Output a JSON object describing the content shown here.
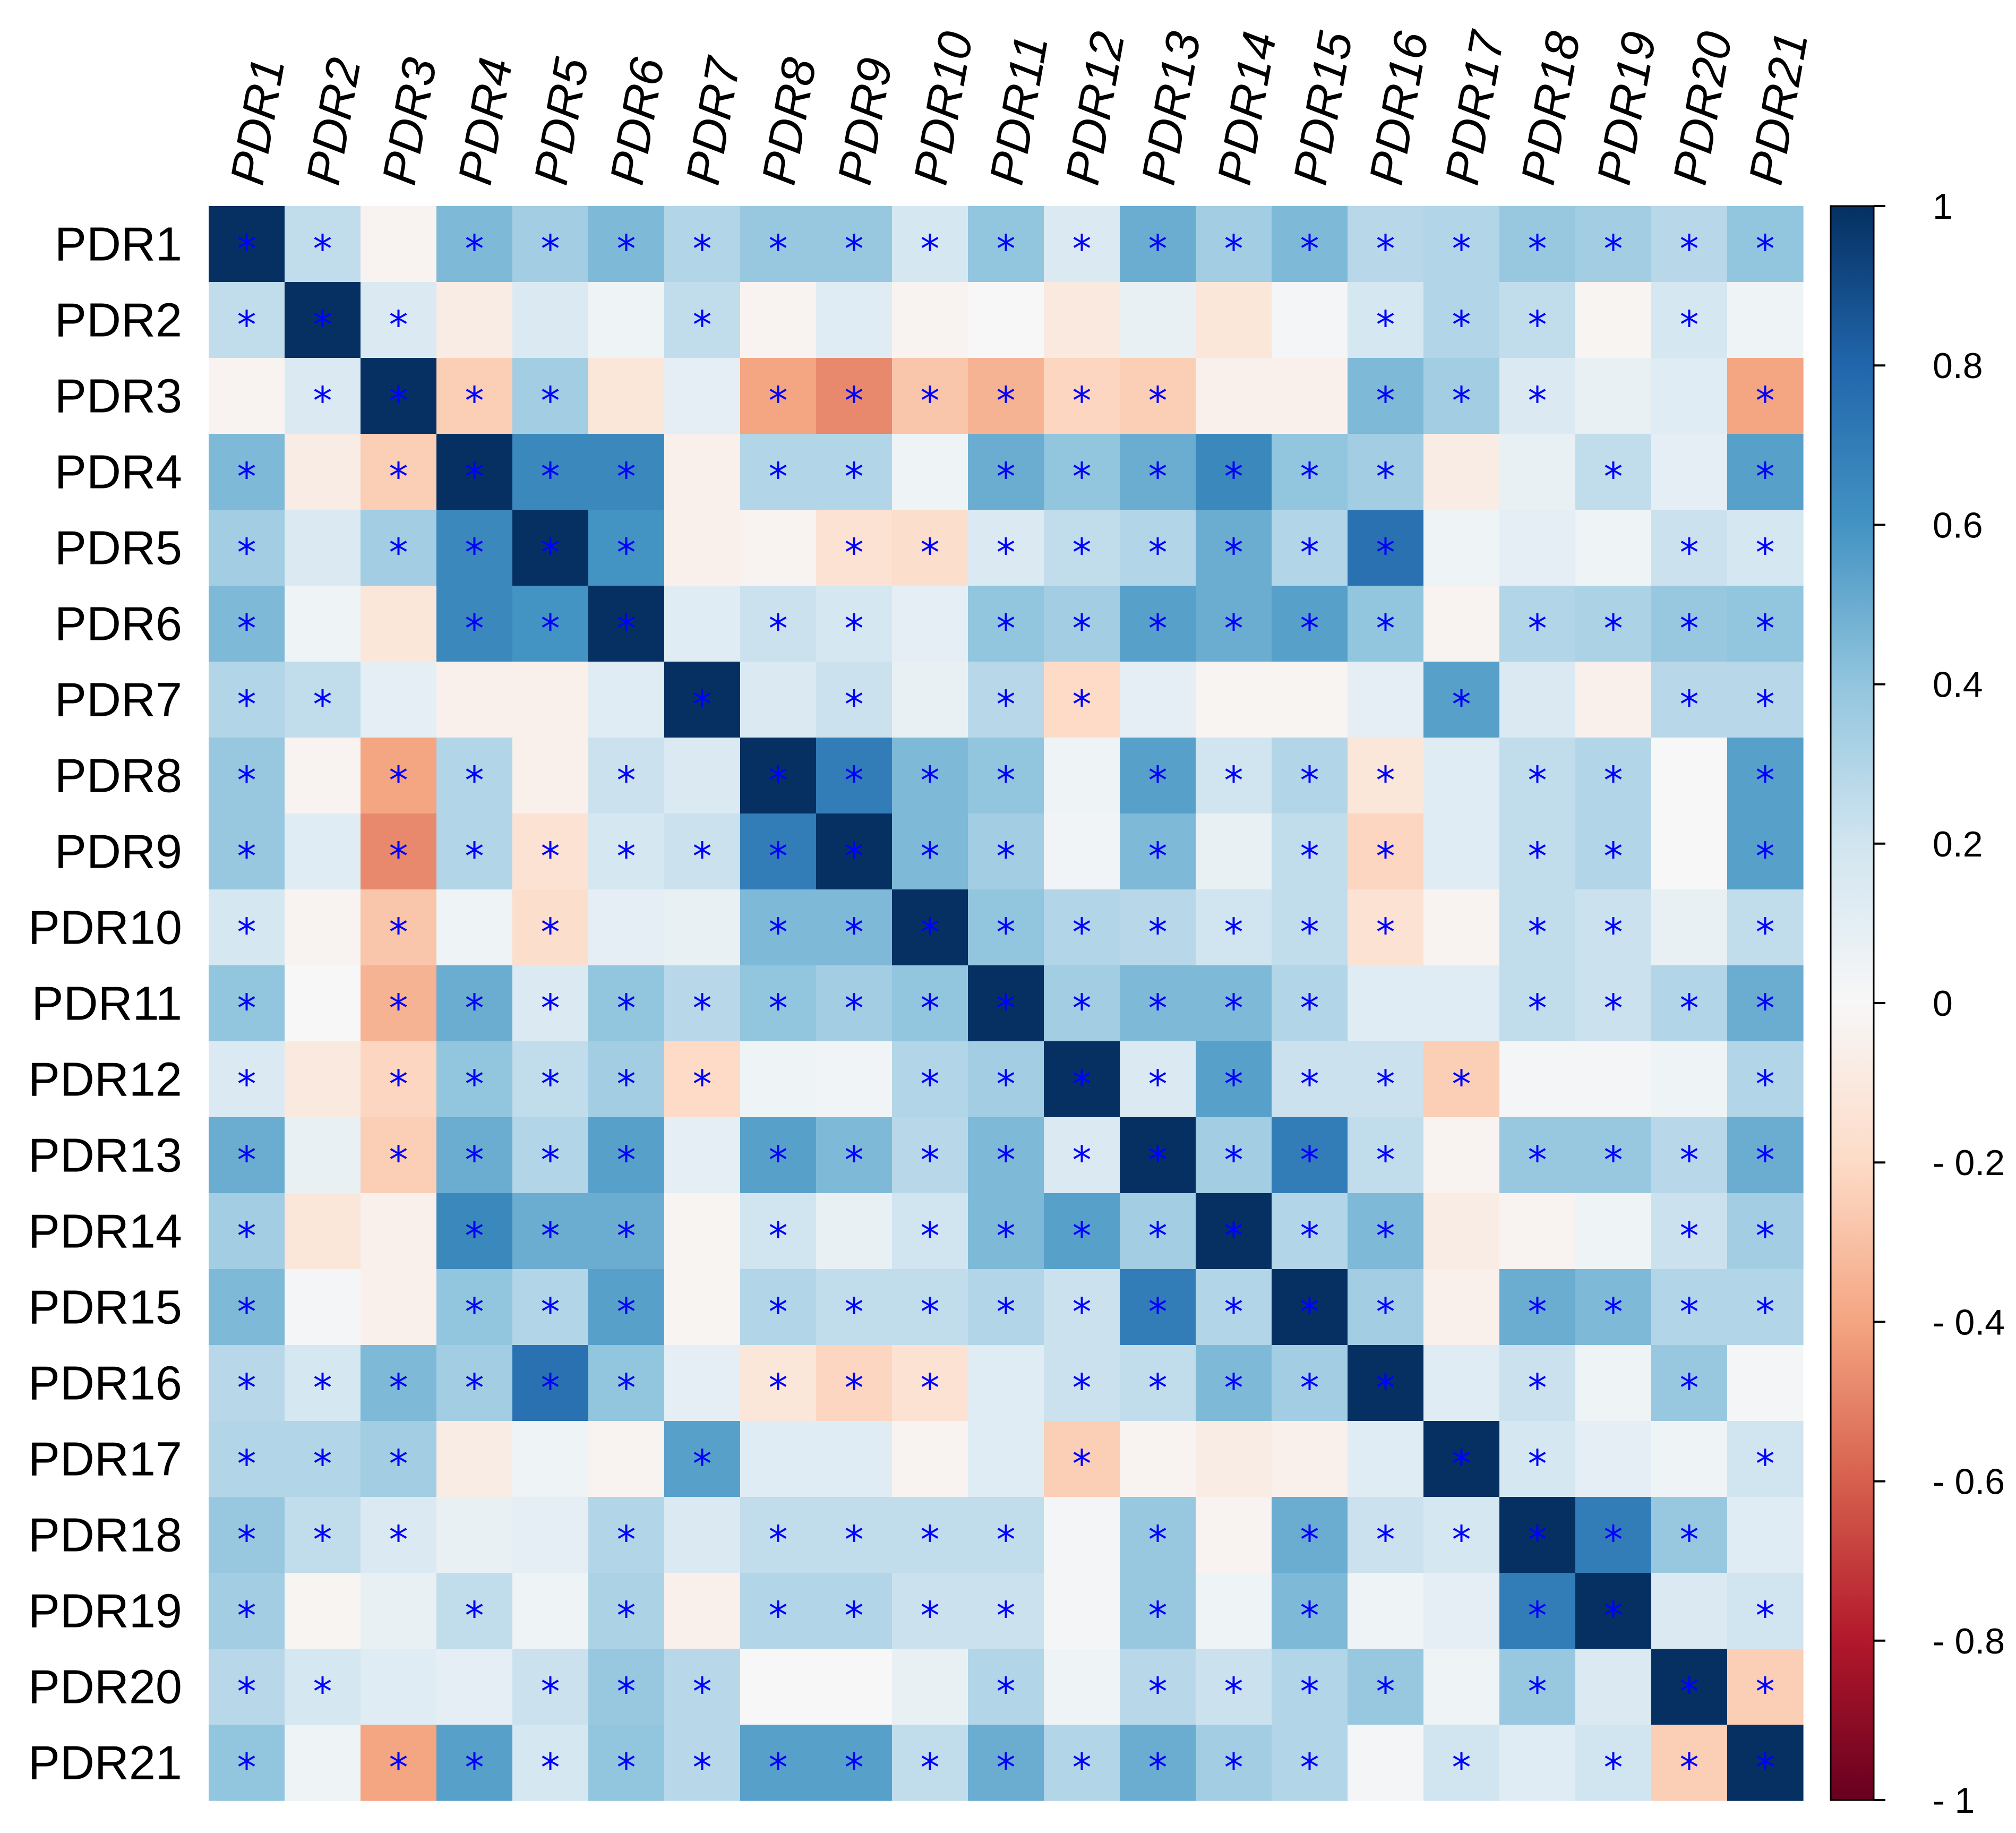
{
  "chart_data": {
    "type": "heatmap",
    "title": "",
    "labels": [
      "PDR1",
      "PDR2",
      "PDR3",
      "PDR4",
      "PDR5",
      "PDR6",
      "PDR7",
      "PDR8",
      "PDR9",
      "PDR10",
      "PDR11",
      "PDR12",
      "PDR13",
      "PDR14",
      "PDR15",
      "PDR16",
      "PDR17",
      "PDR18",
      "PDR19",
      "PDR20",
      "PDR21"
    ],
    "matrix": [
      [
        1.0,
        0.25,
        -0.03,
        0.45,
        0.35,
        0.45,
        0.3,
        0.38,
        0.38,
        0.18,
        0.4,
        0.15,
        0.5,
        0.35,
        0.45,
        0.28,
        0.3,
        0.38,
        0.35,
        0.28,
        0.4
      ],
      [
        0.25,
        1.0,
        0.15,
        -0.08,
        0.15,
        0.05,
        0.25,
        -0.03,
        0.12,
        -0.03,
        0.0,
        -0.1,
        0.08,
        -0.12,
        0.02,
        0.18,
        0.3,
        0.25,
        -0.02,
        0.18,
        0.05
      ],
      [
        -0.03,
        0.15,
        1.0,
        -0.25,
        0.35,
        -0.12,
        0.1,
        -0.4,
        -0.48,
        -0.28,
        -0.35,
        -0.22,
        -0.25,
        -0.05,
        -0.05,
        0.45,
        0.35,
        0.15,
        0.08,
        0.12,
        -0.4
      ],
      [
        0.45,
        -0.08,
        -0.25,
        1.0,
        0.65,
        0.65,
        -0.05,
        0.3,
        0.3,
        0.05,
        0.5,
        0.4,
        0.5,
        0.65,
        0.4,
        0.35,
        -0.08,
        0.08,
        0.25,
        0.1,
        0.55
      ],
      [
        0.35,
        0.15,
        0.35,
        0.65,
        1.0,
        0.6,
        -0.05,
        -0.03,
        -0.15,
        -0.18,
        0.15,
        0.25,
        0.3,
        0.5,
        0.3,
        0.75,
        0.05,
        0.1,
        0.05,
        0.22,
        0.18
      ],
      [
        0.45,
        0.05,
        -0.12,
        0.65,
        0.6,
        1.0,
        0.12,
        0.22,
        0.18,
        0.1,
        0.4,
        0.35,
        0.55,
        0.5,
        0.55,
        0.4,
        -0.03,
        0.3,
        0.32,
        0.38,
        0.4
      ],
      [
        0.3,
        0.25,
        0.1,
        -0.05,
        -0.05,
        0.12,
        1.0,
        0.15,
        0.22,
        0.08,
        0.28,
        -0.2,
        0.1,
        -0.02,
        -0.02,
        0.1,
        0.55,
        0.15,
        -0.05,
        0.28,
        0.28
      ],
      [
        0.38,
        -0.03,
        -0.4,
        0.3,
        -0.05,
        0.22,
        0.15,
        1.0,
        0.7,
        0.45,
        0.4,
        0.05,
        0.55,
        0.2,
        0.3,
        -0.12,
        0.12,
        0.25,
        0.3,
        0.0,
        0.55
      ],
      [
        0.38,
        0.12,
        -0.48,
        0.3,
        -0.15,
        0.18,
        0.22,
        0.7,
        1.0,
        0.45,
        0.35,
        0.03,
        0.45,
        0.08,
        0.25,
        -0.22,
        0.12,
        0.25,
        0.3,
        0.0,
        0.55
      ],
      [
        0.18,
        -0.03,
        -0.28,
        0.05,
        -0.18,
        0.1,
        0.08,
        0.45,
        0.45,
        1.0,
        0.4,
        0.3,
        0.28,
        0.2,
        0.25,
        -0.15,
        -0.03,
        0.25,
        0.22,
        0.08,
        0.25
      ],
      [
        0.4,
        0.0,
        -0.35,
        0.5,
        0.15,
        0.4,
        0.28,
        0.4,
        0.35,
        0.4,
        1.0,
        0.35,
        0.45,
        0.45,
        0.3,
        0.12,
        0.12,
        0.25,
        0.22,
        0.3,
        0.5
      ],
      [
        0.15,
        -0.1,
        -0.22,
        0.4,
        0.25,
        0.35,
        -0.2,
        0.05,
        0.03,
        0.3,
        0.35,
        1.0,
        0.15,
        0.55,
        0.22,
        0.22,
        -0.25,
        0.02,
        0.02,
        0.05,
        0.3
      ],
      [
        0.5,
        0.08,
        -0.25,
        0.5,
        0.3,
        0.55,
        0.1,
        0.55,
        0.45,
        0.28,
        0.45,
        0.15,
        1.0,
        0.35,
        0.7,
        0.25,
        -0.03,
        0.38,
        0.38,
        0.28,
        0.5
      ],
      [
        0.35,
        -0.12,
        -0.05,
        0.65,
        0.5,
        0.5,
        -0.02,
        0.2,
        0.08,
        0.2,
        0.45,
        0.55,
        0.35,
        1.0,
        0.3,
        0.45,
        -0.08,
        -0.03,
        0.05,
        0.22,
        0.35
      ],
      [
        0.45,
        0.02,
        -0.05,
        0.4,
        0.3,
        0.55,
        -0.02,
        0.3,
        0.25,
        0.25,
        0.3,
        0.22,
        0.7,
        0.3,
        1.0,
        0.35,
        -0.05,
        0.5,
        0.45,
        0.3,
        0.3
      ],
      [
        0.28,
        0.18,
        0.45,
        0.35,
        0.75,
        0.4,
        0.1,
        -0.12,
        -0.22,
        -0.15,
        0.12,
        0.22,
        0.25,
        0.45,
        0.35,
        1.0,
        0.12,
        0.22,
        0.05,
        0.38,
        0.02
      ],
      [
        0.3,
        0.3,
        0.35,
        -0.08,
        0.05,
        -0.03,
        0.55,
        0.12,
        0.12,
        -0.03,
        0.12,
        -0.25,
        -0.03,
        -0.08,
        -0.05,
        0.12,
        1.0,
        0.18,
        0.1,
        0.05,
        0.2
      ],
      [
        0.38,
        0.25,
        0.15,
        0.08,
        0.1,
        0.3,
        0.15,
        0.25,
        0.25,
        0.25,
        0.25,
        0.02,
        0.38,
        -0.03,
        0.5,
        0.22,
        0.18,
        1.0,
        0.7,
        0.38,
        0.12
      ],
      [
        0.35,
        -0.02,
        0.08,
        0.25,
        0.05,
        0.32,
        -0.05,
        0.3,
        0.3,
        0.22,
        0.22,
        0.02,
        0.38,
        0.05,
        0.45,
        0.05,
        0.1,
        0.7,
        1.0,
        0.15,
        0.2
      ],
      [
        0.28,
        0.18,
        0.12,
        0.1,
        0.22,
        0.38,
        0.28,
        0.0,
        0.0,
        0.08,
        0.3,
        0.05,
        0.28,
        0.22,
        0.3,
        0.38,
        0.05,
        0.38,
        0.15,
        1.0,
        -0.25
      ],
      [
        0.4,
        0.05,
        -0.4,
        0.55,
        0.18,
        0.4,
        0.28,
        0.55,
        0.55,
        0.25,
        0.5,
        0.3,
        0.5,
        0.35,
        0.3,
        0.02,
        0.2,
        0.12,
        0.2,
        -0.25,
        1.0
      ]
    ],
    "significance": [
      [
        1,
        1,
        0,
        1,
        1,
        1,
        1,
        1,
        1,
        1,
        1,
        1,
        1,
        1,
        1,
        1,
        1,
        1,
        1,
        1,
        1
      ],
      [
        1,
        1,
        1,
        0,
        0,
        0,
        1,
        0,
        0,
        0,
        0,
        0,
        0,
        0,
        0,
        1,
        1,
        1,
        0,
        1,
        0
      ],
      [
        0,
        1,
        1,
        1,
        1,
        0,
        0,
        1,
        1,
        1,
        1,
        1,
        1,
        0,
        0,
        1,
        1,
        1,
        0,
        0,
        1
      ],
      [
        1,
        0,
        1,
        1,
        1,
        1,
        0,
        1,
        1,
        0,
        1,
        1,
        1,
        1,
        1,
        1,
        0,
        0,
        1,
        0,
        1
      ],
      [
        1,
        0,
        1,
        1,
        1,
        1,
        0,
        0,
        1,
        1,
        1,
        1,
        1,
        1,
        1,
        1,
        0,
        0,
        0,
        1,
        1
      ],
      [
        1,
        0,
        0,
        1,
        1,
        1,
        0,
        1,
        1,
        0,
        1,
        1,
        1,
        1,
        1,
        1,
        0,
        1,
        1,
        1,
        1
      ],
      [
        1,
        1,
        0,
        0,
        0,
        0,
        1,
        0,
        1,
        0,
        1,
        1,
        0,
        0,
        0,
        0,
        1,
        0,
        0,
        1,
        1
      ],
      [
        1,
        0,
        1,
        1,
        0,
        1,
        0,
        1,
        1,
        1,
        1,
        0,
        1,
        1,
        1,
        1,
        0,
        1,
        1,
        0,
        1
      ],
      [
        1,
        0,
        1,
        1,
        1,
        1,
        1,
        1,
        1,
        1,
        1,
        0,
        1,
        0,
        1,
        1,
        0,
        1,
        1,
        0,
        1
      ],
      [
        1,
        0,
        1,
        0,
        1,
        0,
        0,
        1,
        1,
        1,
        1,
        1,
        1,
        1,
        1,
        1,
        0,
        1,
        1,
        0,
        1
      ],
      [
        1,
        0,
        1,
        1,
        1,
        1,
        1,
        1,
        1,
        1,
        1,
        1,
        1,
        1,
        1,
        0,
        0,
        1,
        1,
        1,
        1
      ],
      [
        1,
        0,
        1,
        1,
        1,
        1,
        1,
        0,
        0,
        1,
        1,
        1,
        1,
        1,
        1,
        1,
        1,
        0,
        0,
        0,
        1
      ],
      [
        1,
        0,
        1,
        1,
        1,
        1,
        0,
        1,
        1,
        1,
        1,
        1,
        1,
        1,
        1,
        1,
        0,
        1,
        1,
        1,
        1
      ],
      [
        1,
        0,
        0,
        1,
        1,
        1,
        0,
        1,
        0,
        1,
        1,
        1,
        1,
        1,
        1,
        1,
        0,
        0,
        0,
        1,
        1
      ],
      [
        1,
        0,
        0,
        1,
        1,
        1,
        0,
        1,
        1,
        1,
        1,
        1,
        1,
        1,
        1,
        1,
        0,
        1,
        1,
        1,
        1
      ],
      [
        1,
        1,
        1,
        1,
        1,
        1,
        0,
        1,
        1,
        1,
        0,
        1,
        1,
        1,
        1,
        1,
        0,
        1,
        0,
        1,
        0
      ],
      [
        1,
        1,
        1,
        0,
        0,
        0,
        1,
        0,
        0,
        0,
        0,
        1,
        0,
        0,
        0,
        0,
        1,
        1,
        0,
        0,
        1
      ],
      [
        1,
        1,
        1,
        0,
        0,
        1,
        0,
        1,
        1,
        1,
        1,
        0,
        1,
        0,
        1,
        1,
        1,
        1,
        1,
        1,
        0
      ],
      [
        1,
        0,
        0,
        1,
        0,
        1,
        0,
        1,
        1,
        1,
        1,
        0,
        1,
        0,
        1,
        0,
        0,
        1,
        1,
        0,
        1
      ],
      [
        1,
        1,
        0,
        0,
        1,
        1,
        1,
        0,
        0,
        0,
        1,
        0,
        1,
        1,
        1,
        1,
        0,
        1,
        0,
        1,
        1
      ],
      [
        1,
        0,
        1,
        1,
        1,
        1,
        1,
        1,
        1,
        1,
        1,
        1,
        1,
        1,
        1,
        0,
        1,
        0,
        1,
        1,
        1
      ]
    ],
    "marker": "*",
    "colorbar": {
      "min": -1,
      "max": 1,
      "ticks": [
        1,
        0.8,
        0.6,
        0.4,
        0.2,
        0,
        -0.2,
        -0.4,
        -0.6,
        -0.8,
        -1
      ],
      "tick_labels": [
        "1",
        "0.8",
        "0.6",
        "0.4",
        "0.2",
        "0",
        "- 0.2",
        "- 0.4",
        "- 0.6",
        "- 0.8",
        "- 1"
      ],
      "colormap": "RdBu",
      "colors": [
        "#67001f",
        "#b2182b",
        "#d6604d",
        "#f4a582",
        "#fddbc7",
        "#f7f7f7",
        "#d1e5f0",
        "#92c5de",
        "#4393c3",
        "#2166ac",
        "#053061"
      ]
    },
    "marker_color": "#0000ff"
  }
}
